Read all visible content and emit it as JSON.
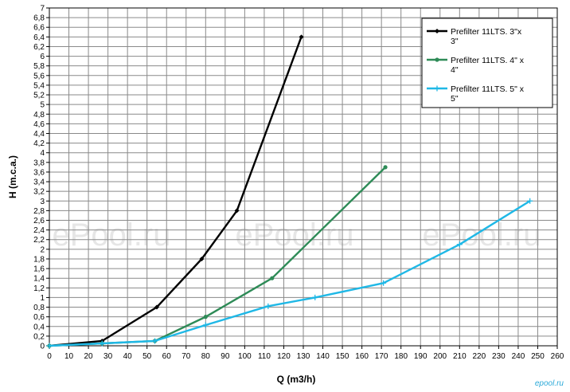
{
  "chart_data": {
    "type": "line",
    "xlabel": "Q (m3/h)",
    "ylabel": "H (m.c.a.)",
    "xlim": [
      0,
      260
    ],
    "ylim": [
      0,
      7
    ],
    "x_ticks": [
      0,
      10,
      20,
      30,
      40,
      50,
      60,
      70,
      80,
      90,
      100,
      110,
      120,
      130,
      140,
      150,
      160,
      170,
      180,
      190,
      200,
      210,
      220,
      230,
      240,
      250,
      260
    ],
    "y_ticks": [
      0,
      0.2,
      0.4,
      0.6,
      0.8,
      1,
      1.2,
      1.4,
      1.6,
      1.8,
      2,
      2.2,
      2.4,
      2.6,
      2.8,
      3,
      3.2,
      3.4,
      3.6,
      3.8,
      4,
      4.2,
      4.4,
      4.6,
      4.8,
      5,
      5.2,
      5.4,
      5.6,
      5.8,
      6,
      6.2,
      6.4,
      6.6,
      6.8,
      7
    ],
    "y_tick_labels": [
      "0",
      "0,2",
      "0,4",
      "0,6",
      "0,8",
      "1",
      "1,2",
      "1,4",
      "1,6",
      "1,8",
      "2",
      "2,2",
      "2,4",
      "2,6",
      "2,8",
      "3",
      "3,2",
      "3,4",
      "3,6",
      "3,8",
      "4",
      "4,2",
      "4,4",
      "4,6",
      "4,8",
      "5",
      "5,2",
      "5,4",
      "5,6",
      "5,8",
      "6",
      "6,2",
      "6,4",
      "6,6",
      "6,8",
      "7"
    ],
    "grid": true,
    "legend_position": "top-right",
    "series": [
      {
        "name_lines": [
          "Prefilter 11LTS. 3\"x",
          "3\""
        ],
        "color": "#000000",
        "marker": "diamond",
        "points": [
          [
            0,
            0
          ],
          [
            27,
            0.1
          ],
          [
            55,
            0.8
          ],
          [
            78,
            1.8
          ],
          [
            96,
            2.8
          ],
          [
            129,
            6.4
          ]
        ]
      },
      {
        "name_lines": [
          "Prefilter 11LTS. 4\" x",
          "4\""
        ],
        "color": "#2e8b57",
        "marker": "dot",
        "points": [
          [
            0,
            0
          ],
          [
            27,
            0.05
          ],
          [
            54,
            0.1
          ],
          [
            80,
            0.6
          ],
          [
            114,
            1.4
          ],
          [
            172,
            3.7
          ]
        ]
      },
      {
        "name_lines": [
          "Prefilter 11LTS. 5\" x",
          "5\""
        ],
        "color": "#1fb8e6",
        "marker": "plus",
        "points": [
          [
            0,
            0
          ],
          [
            27,
            0.05
          ],
          [
            54,
            0.1
          ],
          [
            80,
            0.43
          ],
          [
            112,
            0.82
          ],
          [
            136,
            1.0
          ],
          [
            171,
            1.3
          ],
          [
            210,
            2.1
          ],
          [
            246,
            3.0
          ]
        ]
      }
    ]
  },
  "watermark": "ePool.ru",
  "corner_logo": "epool.ru"
}
